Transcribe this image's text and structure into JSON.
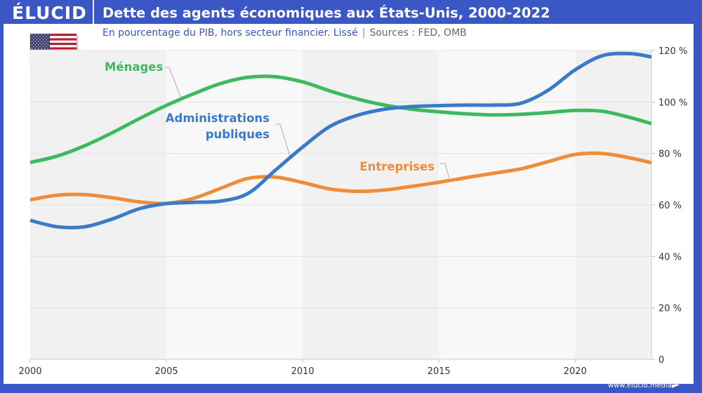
{
  "header": {
    "brand": "ÉLUCID",
    "title": "Dette des agents économiques aux États-Unis, 2000-2022",
    "subtitle": "En pourcentage du PIB, hors secteur financier. Lissé",
    "separator": "|",
    "sources": "Sources : FED, OMB"
  },
  "flag": {
    "icon": "us-flag-icon",
    "country": "États-Unis"
  },
  "footer": {
    "url": "www.elucid.media"
  },
  "colors": {
    "brand": "#3b56c5",
    "menages": "#3dba5f",
    "administrations": "#3a7bc8",
    "entreprises": "#ee8c3a",
    "band_dark": "#f1f1f1",
    "band_light": "#f8f8f8"
  },
  "chart_data": {
    "type": "line",
    "title": "Dette des agents économiques aux États-Unis, 2000-2022",
    "subtitle": "En pourcentage du PIB, hors secteur financier. Lissé",
    "xlabel": "",
    "ylabel": "",
    "xlim": [
      2000,
      2022.8
    ],
    "ylim": [
      0,
      120
    ],
    "x_ticks": [
      "2000",
      "2005",
      "2010",
      "2015",
      "2020"
    ],
    "x_tick_values": [
      2000,
      2005,
      2010,
      2015,
      2020
    ],
    "y_ticks": [
      "0",
      "20 %",
      "40 %",
      "60 %",
      "80 %",
      "100 %",
      "120 %"
    ],
    "y_tick_values": [
      0,
      20,
      40,
      60,
      80,
      100,
      120
    ],
    "y_axis_side": "right",
    "grid": true,
    "legend": "inline-labels",
    "series": [
      {
        "key": "menages",
        "name": "Ménages",
        "x": [
          2000,
          2001,
          2002,
          2003,
          2004,
          2005,
          2006,
          2007,
          2008,
          2009,
          2010,
          2011,
          2012,
          2013,
          2014,
          2015,
          2016,
          2017,
          2018,
          2019,
          2020,
          2021,
          2022,
          2022.8
        ],
        "values": [
          76.5,
          79,
          83,
          88,
          93.5,
          98.7,
          103.2,
          107.2,
          109.6,
          109.8,
          107.8,
          104.3,
          101.2,
          98.8,
          97.2,
          96.2,
          95.4,
          95.0,
          95.2,
          95.9,
          96.7,
          96.4,
          94.0,
          91.6
        ]
      },
      {
        "key": "administrations",
        "name": "Administrations publiques",
        "x": [
          2000,
          2001,
          2002,
          2003,
          2004,
          2005,
          2006,
          2007,
          2008,
          2009,
          2010,
          2011,
          2012,
          2013,
          2014,
          2015,
          2016,
          2017,
          2018,
          2019,
          2020,
          2021,
          2022,
          2022.8
        ],
        "values": [
          54,
          51.5,
          51.5,
          54.5,
          58.5,
          60.5,
          61,
          61.5,
          64.5,
          73.5,
          82.5,
          90.5,
          94.8,
          97.2,
          98.2,
          98.6,
          98.8,
          98.8,
          99.5,
          104.5,
          112.5,
          118,
          118.8,
          117.5
        ]
      },
      {
        "key": "entreprises",
        "name": "Entreprises",
        "x": [
          2000,
          2001,
          2002,
          2003,
          2004,
          2005,
          2006,
          2007,
          2008,
          2009,
          2010,
          2011,
          2012,
          2013,
          2014,
          2015,
          2016,
          2017,
          2018,
          2019,
          2020,
          2021,
          2022,
          2022.8
        ],
        "values": [
          62,
          63.8,
          64,
          62.8,
          61.2,
          60.6,
          62.6,
          66.5,
          70.3,
          70.8,
          68.7,
          66.2,
          65.3,
          65.8,
          67.2,
          68.8,
          70.6,
          72.3,
          74,
          76.8,
          79.6,
          80,
          78.3,
          76.4
        ]
      }
    ],
    "labels": [
      {
        "series": "menages",
        "text": "Ménages"
      },
      {
        "series": "administrations",
        "text_line1": "Administrations",
        "text_line2": "publiques"
      },
      {
        "series": "entreprises",
        "text": "Entreprises"
      }
    ]
  }
}
